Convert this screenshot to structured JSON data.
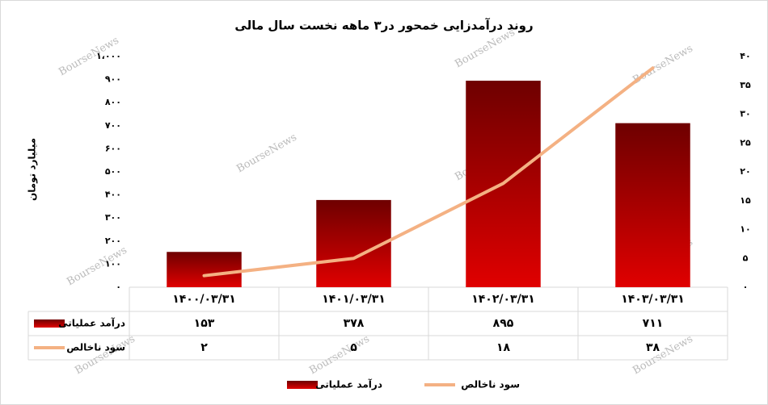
{
  "chart_data": {
    "type": "combo",
    "title": "روند درآمدزایی خمحور در۳ ماهه نخست سال مالی",
    "y_label": "میلیارد تومان",
    "watermark": "BourseNews",
    "categories": [
      "۱۴۰۰/۰۳/۳۱",
      "۱۴۰۱/۰۳/۳۱",
      "۱۴۰۲/۰۳/۳۱",
      "۱۴۰۳/۰۳/۳۱"
    ],
    "series": [
      {
        "name": "درآمد عملیاتی",
        "type": "bar",
        "color": "#e00000",
        "values": [
          153,
          378,
          895,
          711
        ],
        "value_labels": [
          "۱۵۳",
          "۳۷۸",
          "۸۹۵",
          "۷۱۱"
        ]
      },
      {
        "name": "سود ناخالص",
        "type": "line",
        "axis": "y2",
        "color": "#f4b183",
        "values": [
          2,
          5,
          18,
          38
        ],
        "value_labels": [
          "۲",
          "۵",
          "۱۸",
          "۳۸"
        ]
      }
    ],
    "ylim": [
      0,
      1000
    ],
    "yticks": [
      {
        "value": 0,
        "label": "۰"
      },
      {
        "value": 100,
        "label": "۱۰۰"
      },
      {
        "value": 200,
        "label": "۲۰۰"
      },
      {
        "value": 300,
        "label": "۳۰۰"
      },
      {
        "value": 400,
        "label": "۴۰۰"
      },
      {
        "value": 500,
        "label": "۵۰۰"
      },
      {
        "value": 600,
        "label": "۶۰۰"
      },
      {
        "value": 700,
        "label": "۷۰۰"
      },
      {
        "value": 800,
        "label": "۸۰۰"
      },
      {
        "value": 900,
        "label": "۹۰۰"
      },
      {
        "value": 1000,
        "label": "۱،۰۰۰"
      }
    ],
    "y2lim": [
      0,
      40
    ],
    "y2ticks": [
      {
        "value": 0,
        "label": "۰"
      },
      {
        "value": 5,
        "label": "۵"
      },
      {
        "value": 10,
        "label": "۱۰"
      },
      {
        "value": 15,
        "label": "۱۵"
      },
      {
        "value": 20,
        "label": "۲۰"
      },
      {
        "value": 25,
        "label": "۲۵"
      },
      {
        "value": 30,
        "label": "۳۰"
      },
      {
        "value": 35,
        "label": "۳۵"
      },
      {
        "value": 40,
        "label": "۴۰"
      }
    ],
    "grid": false
  }
}
